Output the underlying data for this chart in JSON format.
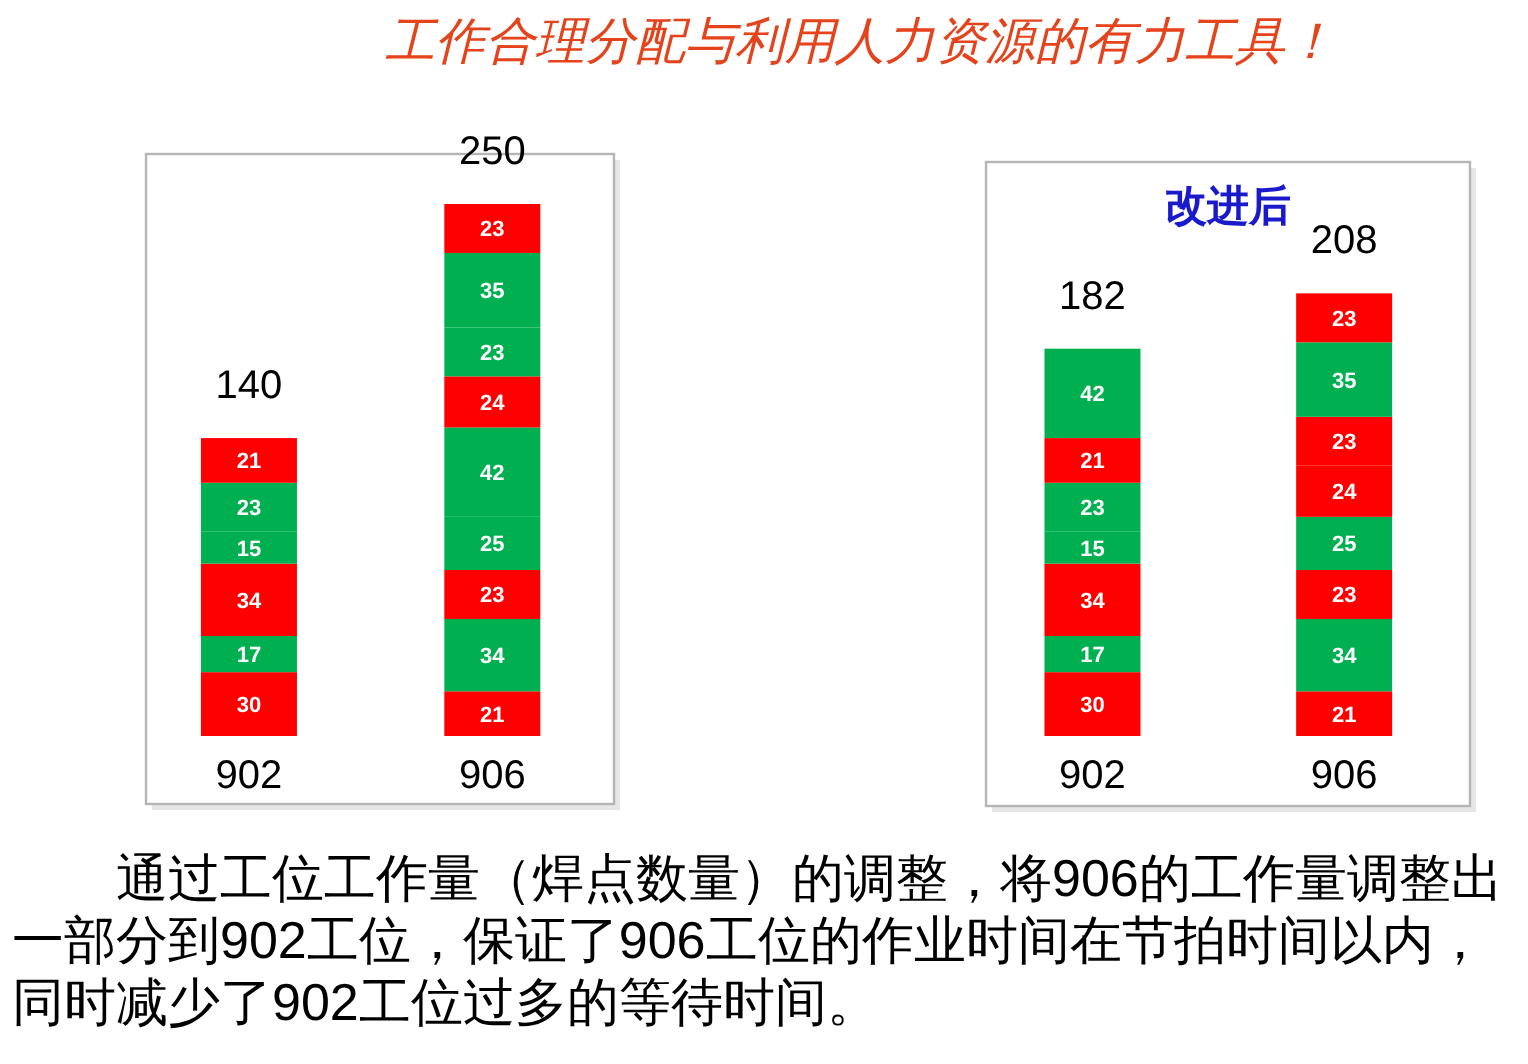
{
  "chart_data": [
    {
      "type": "other",
      "title": "工作合理分配与利用人力资源的有力工具！"
    },
    {
      "type": "bar",
      "stacked": true,
      "categories": [
        "902",
        "906"
      ],
      "tick_labels": "x",
      "data_labels": true,
      "totals": [
        "140",
        "250"
      ],
      "series": [
        {
          "values": [
            30,
            21
          ],
          "colors": [
            "#ff0000",
            "#ff0000"
          ]
        },
        {
          "values": [
            17,
            34
          ],
          "colors": [
            "#00b050",
            "#00b050"
          ]
        },
        {
          "values": [
            34,
            23
          ],
          "colors": [
            "#ff0000",
            "#ff0000"
          ]
        },
        {
          "values": [
            15,
            25
          ],
          "colors": [
            "#00b050",
            "#00b050"
          ]
        },
        {
          "values": [
            23,
            42
          ],
          "colors": [
            "#00b050",
            "#00b050"
          ]
        },
        {
          "values": [
            21,
            24
          ],
          "colors": [
            "#ff0000",
            "#ff0000"
          ]
        },
        {
          "values": [
            null,
            23
          ],
          "colors": [
            null,
            "#00b050"
          ]
        },
        {
          "values": [
            null,
            35
          ],
          "colors": [
            null,
            "#00b050"
          ]
        },
        {
          "values": [
            null,
            23
          ],
          "colors": [
            null,
            "#ff0000"
          ]
        }
      ]
    },
    {
      "type": "bar",
      "stacked": true,
      "title": "改进后",
      "categories": [
        "902",
        "906"
      ],
      "tick_labels": "x",
      "data_labels": true,
      "totals": [
        "182",
        "208"
      ],
      "series": [
        {
          "values": [
            30,
            21
          ],
          "colors": [
            "#ff0000",
            "#ff0000"
          ]
        },
        {
          "values": [
            17,
            34
          ],
          "colors": [
            "#00b050",
            "#00b050"
          ]
        },
        {
          "values": [
            34,
            23
          ],
          "colors": [
            "#ff0000",
            "#ff0000"
          ]
        },
        {
          "values": [
            15,
            25
          ],
          "colors": [
            "#00b050",
            "#00b050"
          ]
        },
        {
          "values": [
            23,
            24
          ],
          "colors": [
            "#00b050",
            "#ff0000"
          ]
        },
        {
          "values": [
            21,
            23
          ],
          "colors": [
            "#ff0000",
            "#ff0000"
          ]
        },
        {
          "values": [
            42,
            35
          ],
          "colors": [
            "#00b050",
            "#00b050"
          ]
        },
        {
          "values": [
            null,
            23
          ],
          "colors": [
            null,
            "#ff0000"
          ]
        }
      ]
    },
    {
      "type": "other",
      "annotations": [
        "通过工位工作量（焊点数量）的调整，将906的工作量调整出一部分到902工位，保证了906工位的作业时间在节拍时间以内，同时减少了902工位过多的等待时间。"
      ]
    }
  ]
}
